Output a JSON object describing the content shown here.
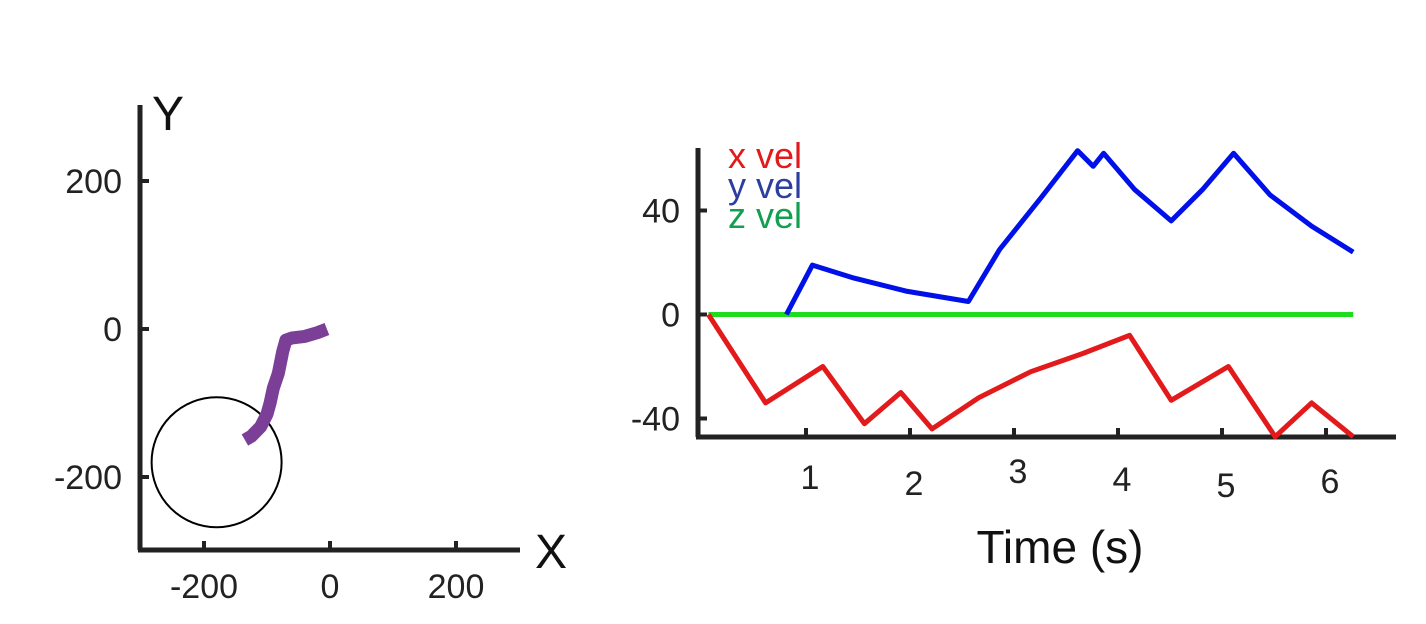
{
  "chart_data": [
    {
      "type": "line",
      "title": "",
      "xlabel": "X",
      "ylabel": "Y",
      "xlim": [
        -300,
        300
      ],
      "ylim": [
        -300,
        300
      ],
      "xticks": [
        -200,
        0,
        200
      ],
      "yticks": [
        -200,
        0,
        200
      ],
      "xtick_labels": [
        "-200",
        "0",
        "200"
      ],
      "ytick_labels": [
        "-200",
        "0",
        "200"
      ],
      "grid": false,
      "series": [
        {
          "color": "#7b3f98",
          "x": [
            -5,
            -20,
            -40,
            -60,
            -70,
            -75,
            -82,
            -90,
            -95,
            -100,
            -110,
            -125,
            -135
          ],
          "y": [
            0,
            -5,
            -10,
            -12,
            -15,
            -30,
            -60,
            -80,
            -100,
            -115,
            -132,
            -145,
            -150
          ]
        }
      ],
      "annotations": [
        {
          "shape": "circle",
          "cx": -180,
          "cy": -180,
          "r": 100,
          "color": "#000000"
        }
      ]
    },
    {
      "type": "line",
      "title": "",
      "xlabel": "Time (s)",
      "ylabel": "",
      "xlim": [
        0,
        6.35
      ],
      "ylim": [
        -48,
        65
      ],
      "xticks": [
        1,
        2,
        3,
        4,
        5,
        6
      ],
      "yticks": [
        -40,
        0,
        40
      ],
      "xtick_labels": [
        "1",
        "2",
        "3",
        "4",
        "5",
        "6"
      ],
      "ytick_labels": [
        "-40",
        "0",
        "40"
      ],
      "grid": false,
      "legend_position": "top-left",
      "series": [
        {
          "name": "x vel",
          "color": "#e31a1c",
          "x": [
            0.1,
            0.65,
            1.2,
            1.6,
            1.95,
            2.25,
            2.7,
            3.2,
            3.7,
            4.15,
            4.55,
            5.1,
            5.55,
            5.9,
            6.3
          ],
          "y": [
            0,
            -34,
            -20,
            -42,
            -30,
            -44,
            -32,
            -22,
            -15,
            -8,
            -33,
            -20,
            -47,
            -34,
            -47
          ]
        },
        {
          "name": "y vel",
          "color": "#0010e8",
          "x": [
            0.85,
            1.1,
            1.5,
            2.0,
            2.6,
            2.9,
            3.3,
            3.65,
            3.8,
            3.9,
            4.2,
            4.55,
            4.85,
            5.15,
            5.5,
            5.9,
            6.3
          ],
          "y": [
            0,
            19,
            14,
            9,
            5,
            25,
            45,
            63,
            57,
            62,
            48,
            36,
            48,
            62,
            46,
            34,
            24
          ]
        },
        {
          "name": "z vel",
          "color": "#1edc1e",
          "x": [
            0.1,
            6.3
          ],
          "y": [
            0,
            0
          ]
        }
      ]
    }
  ]
}
